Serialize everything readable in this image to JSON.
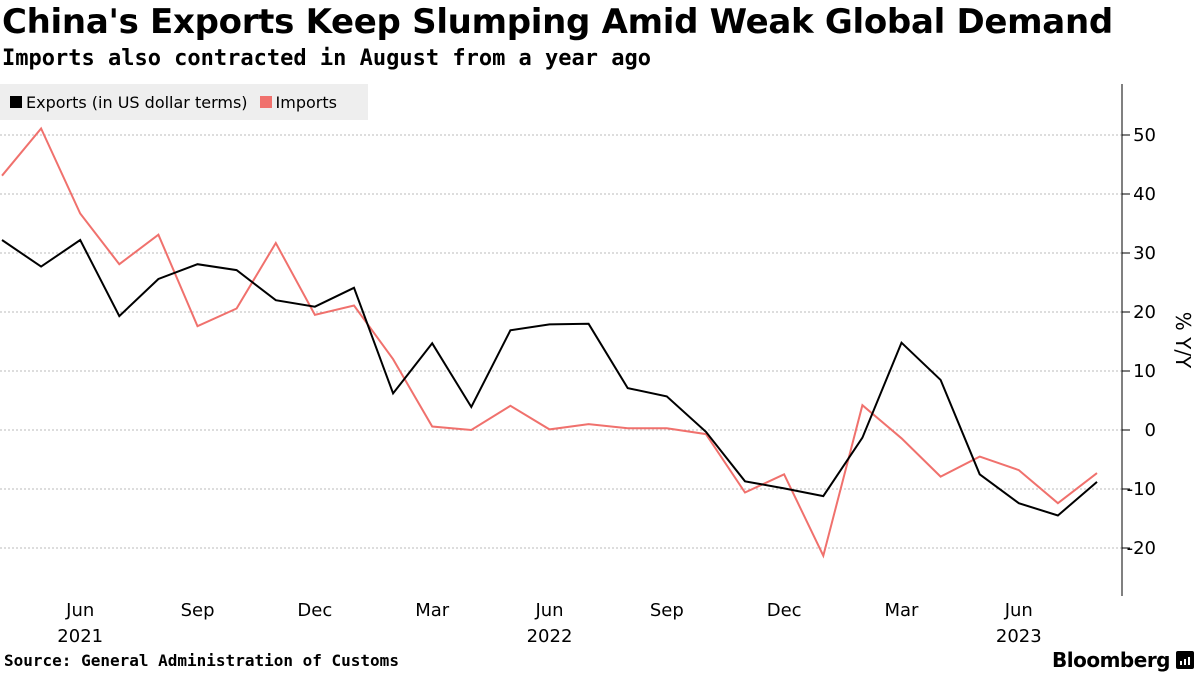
{
  "header": {
    "title": "China's Exports Keep Slumping Amid Weak Global Demand",
    "subtitle": "Imports also contracted in August from a year ago"
  },
  "footer": {
    "source": "Source: General Administration of Customs",
    "brand": "Bloomberg"
  },
  "colors": {
    "exports": "#000000",
    "imports": "#f0716d",
    "grid": "#bbbbbb",
    "legend_bg": "#eeeeee"
  },
  "chart_data": {
    "type": "line",
    "title": "China's Exports Keep Slumping Amid Weak Global Demand",
    "subtitle": "Imports also contracted in August from a year ago",
    "ylabel": "% Y/Y",
    "xlabel": "",
    "ylim": [
      -28,
      59
    ],
    "yticks": [
      50,
      40,
      30,
      20,
      10,
      0,
      -10,
      -20
    ],
    "grid": true,
    "y_axis_side": "right",
    "legend_position": "top-left",
    "x_range": [
      "2021-04",
      "2023-08"
    ],
    "x_tick_labels": [
      {
        "date": "2021-06",
        "label": "Jun",
        "year_label": "2021"
      },
      {
        "date": "2021-09",
        "label": "Sep",
        "year_label": ""
      },
      {
        "date": "2021-12",
        "label": "Dec",
        "year_label": ""
      },
      {
        "date": "2022-03",
        "label": "Mar",
        "year_label": ""
      },
      {
        "date": "2022-06",
        "label": "Jun",
        "year_label": "2022"
      },
      {
        "date": "2022-09",
        "label": "Sep",
        "year_label": ""
      },
      {
        "date": "2022-12",
        "label": "Dec",
        "year_label": ""
      },
      {
        "date": "2023-03",
        "label": "Mar",
        "year_label": ""
      },
      {
        "date": "2023-06",
        "label": "Jun",
        "year_label": "2023"
      }
    ],
    "x": [
      "2021-04",
      "2021-05",
      "2021-06",
      "2021-07",
      "2021-08",
      "2021-09",
      "2021-10",
      "2021-11",
      "2021-12",
      "2022-01",
      "2022-02",
      "2022-03",
      "2022-04",
      "2022-05",
      "2022-06",
      "2022-07",
      "2022-08",
      "2022-09",
      "2022-10",
      "2022-11",
      "2022-12",
      "2023-01",
      "2023-02",
      "2023-03",
      "2023-04",
      "2023-05",
      "2023-06",
      "2023-07",
      "2023-08"
    ],
    "series": [
      {
        "name": "Exports (in US dollar terms)",
        "values": [
          32.2,
          27.7,
          32.2,
          19.3,
          25.6,
          28.1,
          27.1,
          22.0,
          20.9,
          24.1,
          6.2,
          14.7,
          3.9,
          16.9,
          17.9,
          18.0,
          7.1,
          5.7,
          -0.3,
          -8.7,
          -9.9,
          -11.2,
          -1.3,
          14.8,
          8.5,
          -7.5,
          -12.4,
          -14.5,
          -8.8
        ]
      },
      {
        "name": "Imports",
        "values": [
          43.1,
          51.1,
          36.7,
          28.1,
          33.1,
          17.6,
          20.6,
          31.7,
          19.5,
          21.1,
          12.0,
          0.6,
          0.0,
          4.1,
          0.1,
          1.0,
          0.3,
          0.3,
          -0.7,
          -10.6,
          -7.5,
          -21.3,
          4.2,
          -1.4,
          -7.9,
          -4.5,
          -6.8,
          -12.4,
          -7.3
        ]
      }
    ]
  }
}
